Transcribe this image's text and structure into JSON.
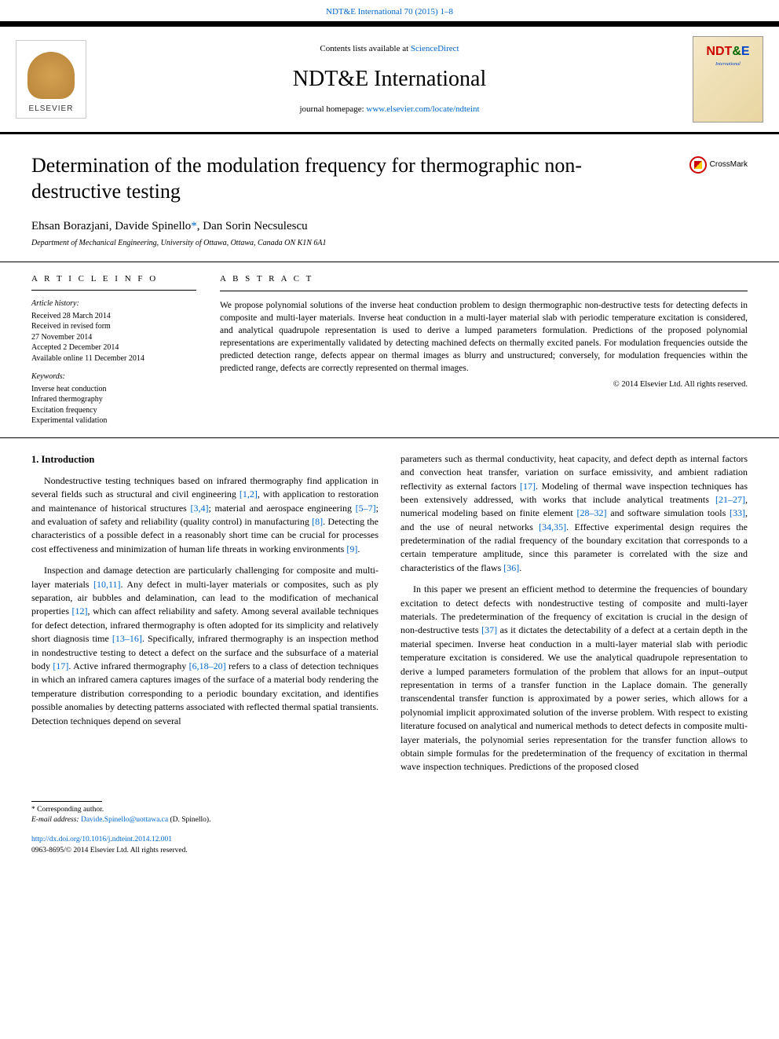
{
  "journalRef": {
    "text": "NDT&E International 70 (2015) 1–8",
    "link": "NDT&E International 70 (2015) 1–8"
  },
  "header": {
    "contentsPrefix": "Contents lists available at ",
    "contentsLink": "ScienceDirect",
    "journalName": "NDT&E International",
    "homepagePrefix": "journal homepage: ",
    "homepageLink": "www.elsevier.com/locate/ndteint",
    "elsevierLabel": "ELSEVIER",
    "coverLogo": {
      "n": "N",
      "d": "D",
      "t": "T",
      "amp": "&",
      "e": "E",
      "sub": "International"
    }
  },
  "title": "Determination of the modulation frequency for thermographic non-destructive testing",
  "crossmarkLabel": "CrossMark",
  "authors": "Ehsan Borazjani, Davide Spinello",
  "authorsCorrMark": "*",
  "authorsRest": ", Dan Sorin Necsulescu",
  "affiliation": "Department of Mechanical Engineering, University of Ottawa, Ottawa, Canada ON K1N 6A1",
  "articleInfo": {
    "heading": "A R T I C L E  I N F O",
    "historyHead": "Article history:",
    "history": [
      "Received 28 March 2014",
      "Received in revised form",
      "27 November 2014",
      "Accepted 2 December 2014",
      "Available online 11 December 2014"
    ],
    "keywordsHead": "Keywords:",
    "keywords": [
      "Inverse heat conduction",
      "Infrared thermography",
      "Excitation frequency",
      "Experimental validation"
    ]
  },
  "abstract": {
    "heading": "A B S T R A C T",
    "text": "We propose polynomial solutions of the inverse heat conduction problem to design thermographic non-destructive tests for detecting defects in composite and multi-layer materials. Inverse heat conduction in a multi-layer material slab with periodic temperature excitation is considered, and analytical quadrupole representation is used to derive a lumped parameters formulation. Predictions of the proposed polynomial representations are experimentally validated by detecting machined defects on thermally excited panels. For modulation frequencies outside the predicted detection range, defects appear on thermal images as blurry and unstructured; conversely, for modulation frequencies within the predicted range, defects are correctly represented on thermal images.",
    "copyright": "© 2014 Elsevier Ltd. All rights reserved."
  },
  "body": {
    "sectionHead": "1.  Introduction",
    "leftParas": [
      {
        "pre": "Nondestructive testing techniques based on infrared thermography find application in several fields such as structural and civil engineering ",
        "r1": "[1,2]",
        "mid1": ", with application to restoration and maintenance of historical structures ",
        "r2": "[3,4]",
        "mid2": "; material and aerospace engineering ",
        "r3": "[5–7]",
        "mid3": "; and evaluation of safety and reliability (quality control) in manufacturing ",
        "r4": "[8]",
        "mid4": ". Detecting the characteristics of a possible defect in a reasonably short time can be crucial for processes cost effectiveness and minimization of human life threats in working environments ",
        "r5": "[9]",
        "end": "."
      },
      {
        "pre": "Inspection and damage detection are particularly challenging for composite and multi-layer materials ",
        "r1": "[10,11]",
        "mid1": ". Any defect in multi-layer materials or composites, such as ply separation, air bubbles and delamination, can lead to the modification of mechanical properties ",
        "r2": "[12]",
        "mid2": ", which can affect reliability and safety. Among several available techniques for defect detection, infrared thermography is often adopted for its simplicity and relatively short diagnosis time ",
        "r3": "[13–16]",
        "mid3": ". Specifically, infrared thermography is an inspection method in nondestructive testing to detect a defect on the surface and the subsurface of a material body ",
        "r4": "[17]",
        "mid4": ". Active infrared thermography ",
        "r5": "[6,18–20]",
        "end": " refers to a class of detection techniques in which an infrared camera captures images of the surface of a material body rendering the temperature distribution corresponding to a periodic boundary excitation, and identifies possible anomalies by detecting patterns associated with reflected thermal spatial transients. Detection techniques depend on several"
      }
    ],
    "rightParas": [
      {
        "pre": "parameters such as thermal conductivity, heat capacity, and defect depth as internal factors and convection heat transfer, variation on surface emissivity, and ambient radiation reflectivity as external factors ",
        "r1": "[17]",
        "mid1": ". Modeling of thermal wave inspection techniques has been extensively addressed, with works that include analytical treatments ",
        "r2": "[21–27]",
        "mid2": ", numerical modeling based on finite element ",
        "r3": "[28–32]",
        "mid3": " and software simulation tools ",
        "r4": "[33]",
        "mid4": ", and the use of neural networks ",
        "r5": "[34,35]",
        "mid5": ". Effective experimental design requires the predetermination of the radial frequency of the boundary excitation that corresponds to a certain temperature amplitude, since this parameter is correlated with the size and characteristics of the flaws ",
        "r6": "[36]",
        "end": "."
      },
      {
        "pre": "In this paper we present an efficient method to determine the frequencies of boundary excitation to detect defects with nondestructive testing of composite and multi-layer materials. The predetermination of the frequency of excitation is crucial in the design of non-destructive tests ",
        "r1": "[37]",
        "end": " as it dictates the detectability of a defect at a certain depth in the material specimen. Inverse heat conduction in a multi-layer material slab with periodic temperature excitation is considered. We use the analytical quadrupole representation to derive a lumped parameters formulation of the problem that allows for an input–output representation in terms of a transfer function in the Laplace domain. The generally transcendental transfer function is approximated by a power series, which allows for a polynomial implicit approximated solution of the inverse problem. With respect to existing literature focused on analytical and numerical methods to detect defects in composite multi-layer materials, the polynomial series representation for the transfer function allows to obtain simple formulas for the predetermination of the frequency of excitation in thermal wave inspection techniques. Predictions of the proposed closed"
      }
    ]
  },
  "footnotes": {
    "corrLabel": "* Corresponding author.",
    "emailLabel": "E-mail address: ",
    "email": "Davide.Spinello@uottawa.ca",
    "emailSuffix": " (D. Spinello)."
  },
  "doi": {
    "link": "http://dx.doi.org/10.1016/j.ndteint.2014.12.001",
    "issn": "0963-8695/© 2014 Elsevier Ltd. All rights reserved."
  },
  "colors": {
    "link": "#0066cc",
    "ndteRed": "#cc0000",
    "ndteGreen": "#006600",
    "ndteBlue": "#0044cc"
  }
}
